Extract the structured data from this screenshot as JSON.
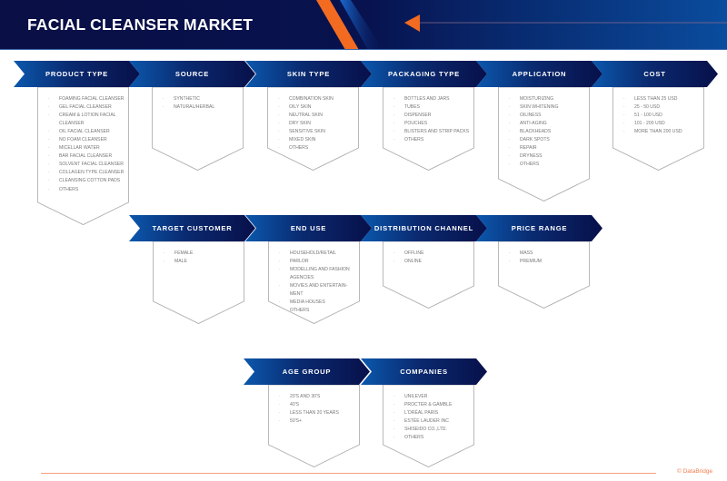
{
  "header": {
    "title": "FACIAL CLEANSER MARKET"
  },
  "colors": {
    "accent": "#f26b21",
    "navy": "#08104a",
    "blue": "#0b58ad"
  },
  "segments": [
    {
      "label": "PRODUCT TYPE",
      "items": [
        "FOAMING FACIAL CLEANSER",
        "GEL FACIAL CLEANSER",
        "CREAM & LOTION FACIAL CLEANSER",
        "OIL FACIAL CLEANSER",
        "NO FOAM CLEANSER",
        "MICELLAR WATER",
        "BAR FACIAL CLEANSER",
        "SOLVENT FACIAL CLEANSER",
        "COLLAGEN TYPE CLEANSER",
        "CLEANSING COTTON PADS",
        "OTHERS"
      ]
    },
    {
      "label": "SOURCE",
      "items": [
        "SYNTHETIC",
        "NATURAL/HERBAL"
      ]
    },
    {
      "label": "SKIN TYPE",
      "items": [
        "COMBINATION SKIN",
        "OILY SKIN",
        "NEUTRAL SKIN",
        "DRY SKIN",
        "SENSITIVE SKIN",
        "MIXED SKIN",
        "OTHERS"
      ]
    },
    {
      "label": "PACKAGING TYPE",
      "items": [
        "BOTTLES AND JARS",
        "TUBES",
        "DISPENSER",
        "POUCHES",
        "BLISTERS AND STRIP PACKS",
        "OTHERS"
      ]
    },
    {
      "label": "APPLICATION",
      "items": [
        "MOISTURIZING",
        "SKIN WHITENING",
        "OILINESS",
        "ANTI-AGING",
        "BLACKHEADS",
        "DARK SPOTS",
        "REPAIR",
        "DRYNESS",
        "OTHERS"
      ]
    },
    {
      "label": "COST",
      "items": [
        "LESS THAN 25 USD",
        "25 - 50 USD",
        "51 - 100 USD",
        "101 - 200 USD",
        "MORE THAN 200 USD"
      ]
    },
    {
      "label": "TARGET CUSTOMER",
      "items": [
        "FEMALE",
        "MALE"
      ]
    },
    {
      "label": "END USE",
      "items": [
        "HOUSEHOLD/RETAIL",
        "PARLOR",
        "MODELLING AND FASHION AGENCIES",
        "MOVIES AND ENTERTAIN-MENT",
        "MEDIA HOUSES",
        "OTHERS"
      ]
    },
    {
      "label": "DISTRIBUTION CHANNEL",
      "items": [
        "OFFLINE",
        "ONLINE"
      ]
    },
    {
      "label": "PRICE RANGE",
      "items": [
        "MASS",
        "PREMIUM"
      ]
    },
    {
      "label": "AGE GROUP",
      "items": [
        "20'S AND 30'S",
        "40'S",
        "LESS THAN 20 YEARS",
        "50'S+"
      ]
    },
    {
      "label": "COMPANIES",
      "items": [
        "UNILEVER",
        "PROCTER & GAMBLE",
        "L'ORÉAL PARIS",
        "ESTÉE LAUDER INC",
        "SHISEIDO CO.,LTD.",
        "OTHERS"
      ]
    }
  ],
  "footer": {
    "brand": "© DataBridge"
  }
}
